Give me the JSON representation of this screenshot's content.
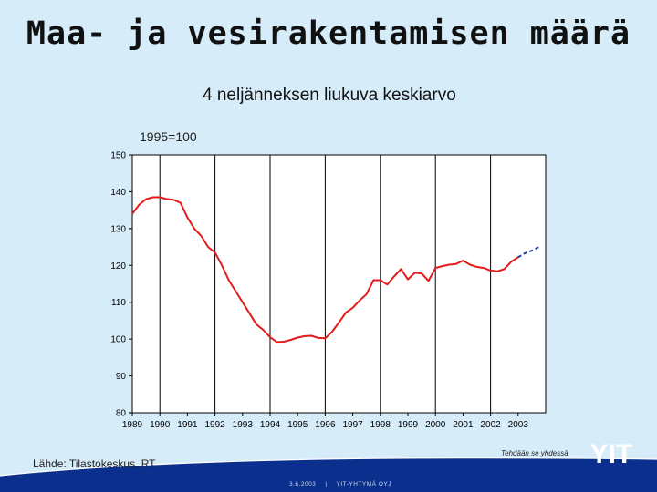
{
  "slide": {
    "title": "Maa- ja vesirakentamisen määrä",
    "subtitle": "4 neljänneksen liukuva keskiarvo",
    "index_note": "1995=100",
    "source": "Lähde: Tilastokeskus, RT",
    "tagline": "Tehdään se yhdessä",
    "footer_date": "3.6.2003",
    "footer_sep": "|",
    "footer_company": "YIT-YHTYMÄ OYJ",
    "logo_text": "YIT",
    "colors": {
      "background": "#d6ecf8",
      "accent": "#0a2f8c",
      "series": "#e31b1b",
      "forecast": "#1f3ea0"
    }
  },
  "chart_data": {
    "type": "line",
    "title": "Maa- ja vesirakentamisen määrä",
    "subtitle": "4 neljänneksen liukuva keskiarvo",
    "ylabel": "1995=100",
    "xlabel": "",
    "ylim": [
      80,
      150
    ],
    "yticks": [
      80,
      90,
      100,
      110,
      120,
      130,
      140,
      150
    ],
    "xlim": [
      1989,
      2004
    ],
    "xticks": [
      "1989",
      "1990",
      "1991",
      "1992",
      "1993",
      "1994",
      "1995",
      "1996",
      "1997",
      "1998",
      "1999",
      "2000",
      "2001",
      "2002",
      "2003"
    ],
    "grid": "vertical",
    "series": [
      {
        "style": "solid",
        "color": "#e31b1b",
        "x": [
          1989.0,
          1989.25,
          1989.5,
          1989.75,
          1990.0,
          1990.25,
          1990.5,
          1990.75,
          1991.0,
          1991.25,
          1991.5,
          1991.75,
          1992.0,
          1992.25,
          1992.5,
          1992.75,
          1993.0,
          1993.25,
          1993.5,
          1993.75,
          1994.0,
          1994.25,
          1994.5,
          1994.75,
          1995.0,
          1995.25,
          1995.5,
          1995.75,
          1996.0,
          1996.25,
          1996.5,
          1996.75,
          1997.0,
          1997.25,
          1997.5,
          1997.75,
          1998.0,
          1998.25,
          1998.5,
          1998.75,
          1999.0,
          1999.25,
          1999.5,
          1999.75,
          2000.0,
          2000.25,
          2000.5,
          2000.75,
          2001.0,
          2001.25,
          2001.5,
          2001.75,
          2002.0,
          2002.25,
          2002.5,
          2002.75,
          2003.0
        ],
        "values": [
          134,
          136.5,
          138,
          138.5,
          138.5,
          138,
          137.8,
          137,
          133,
          130,
          128,
          125,
          123.5,
          120,
          116,
          113,
          110,
          107,
          104,
          102.5,
          100.5,
          99.2,
          99.3,
          99.8,
          100.4,
          100.8,
          100.9,
          100.3,
          100.2,
          102,
          104.5,
          107.2,
          108.5,
          110.5,
          112.2,
          116,
          116,
          114.8,
          117,
          119,
          116.2,
          118,
          117.8,
          115.8,
          119.3,
          119.8,
          120.2,
          120.4,
          121.3,
          120.2,
          119.6,
          119.3,
          118.6,
          118.4,
          119,
          121,
          122.2
        ]
      },
      {
        "style": "dashed",
        "color": "#1f3ea0",
        "x": [
          2003.0,
          2003.25,
          2003.5,
          2003.75
        ],
        "values": [
          122.2,
          123.3,
          124.0,
          125.0
        ]
      }
    ]
  }
}
